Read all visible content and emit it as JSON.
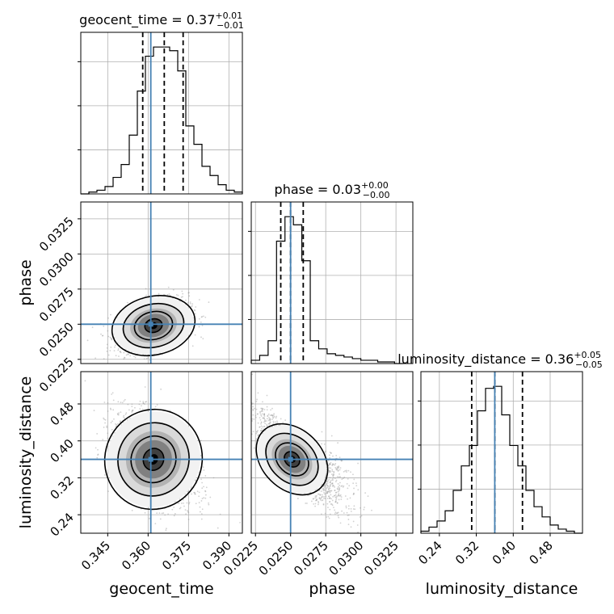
{
  "chart_data": {
    "type": "corner",
    "parameters": [
      "geocent_time",
      "phase",
      "luminosity_distance"
    ],
    "truths": {
      "geocent_time": 0.361,
      "phase": 0.025,
      "luminosity_distance": 0.36
    },
    "titles": [
      {
        "param": "geocent_time",
        "main": "geocent_time = 0.37",
        "sup": "+0.01",
        "sub": "−0.01"
      },
      {
        "param": "phase",
        "main": "phase = 0.03",
        "sup": "+0.00",
        "sub": "−0.00"
      },
      {
        "param": "luminosity_distance",
        "main": "luminosity_distance = 0.36",
        "sup": "+0.05",
        "sub": "−0.05"
      }
    ],
    "axes": {
      "geocent_time": {
        "range": [
          0.335,
          0.395
        ],
        "ticks": [
          "0.345",
          "0.360",
          "0.375",
          "0.390"
        ]
      },
      "phase": {
        "range": [
          0.0222,
          0.0337
        ],
        "ticks": [
          "0.0225",
          "0.0250",
          "0.0275",
          "0.0300",
          "0.0325"
        ]
      },
      "luminosity_distance": {
        "range": [
          0.2,
          0.55
        ],
        "ticks": [
          "0.24",
          "0.32",
          "0.40",
          "0.48"
        ]
      }
    },
    "xlabels": [
      "geocent_time",
      "phase",
      "luminosity_distance"
    ],
    "ylabels": [
      "phase",
      "luminosity_distance"
    ],
    "histograms": {
      "geocent_time": {
        "bins": [
          0.335,
          0.338,
          0.341,
          0.344,
          0.347,
          0.35,
          0.353,
          0.356,
          0.359,
          0.362,
          0.365,
          0.368,
          0.371,
          0.374,
          0.377,
          0.38,
          0.383,
          0.386,
          0.389,
          0.392,
          0.395
        ],
        "counts": [
          0,
          1,
          2,
          4,
          9,
          16,
          32,
          56,
          75,
          80,
          80,
          78,
          67,
          37,
          27,
          15,
          10,
          5,
          2,
          1
        ],
        "quantiles": [
          0.358,
          0.366,
          0.373
        ]
      },
      "phase": {
        "bins": [
          0.0222,
          0.0228,
          0.0234,
          0.024,
          0.0246,
          0.0252,
          0.0258,
          0.0264,
          0.027,
          0.0276,
          0.0282,
          0.0288,
          0.0294,
          0.03,
          0.0306,
          0.0312,
          0.0318,
          0.0324,
          0.033
        ],
        "counts": [
          2,
          5,
          14,
          75,
          90,
          85,
          63,
          14,
          9,
          6,
          5,
          4,
          3,
          2,
          2,
          1,
          1,
          0
        ],
        "quantiles": [
          0.0243,
          0.025,
          0.0259
        ]
      },
      "luminosity_distance": {
        "bins": [
          0.2,
          0.2175,
          0.235,
          0.2525,
          0.27,
          0.2875,
          0.305,
          0.3225,
          0.34,
          0.3575,
          0.375,
          0.3925,
          0.41,
          0.4275,
          0.445,
          0.4625,
          0.48,
          0.4975,
          0.515,
          0.5325,
          0.55
        ],
        "counts": [
          1,
          3,
          6,
          11,
          21,
          33,
          43,
          60,
          71,
          72,
          58,
          43,
          33,
          21,
          13,
          8,
          4,
          2,
          1,
          0
        ],
        "quantiles": [
          0.31,
          0.36,
          0.42
        ]
      }
    },
    "scatter_2d": [
      {
        "x": "geocent_time",
        "y": "phase",
        "center": [
          0.362,
          0.0249
        ],
        "spread": [
          0.0065,
          0.0009
        ],
        "tilt": 0.35
      },
      {
        "x": "geocent_time",
        "y": "luminosity_distance",
        "center": [
          0.362,
          0.36
        ],
        "spread": [
          0.0075,
          0.05
        ],
        "tilt": -0.45
      },
      {
        "x": "phase",
        "y": "luminosity_distance",
        "center": [
          0.0251,
          0.36
        ],
        "spread": [
          0.0012,
          0.05
        ],
        "tilt": -0.85
      }
    ]
  }
}
